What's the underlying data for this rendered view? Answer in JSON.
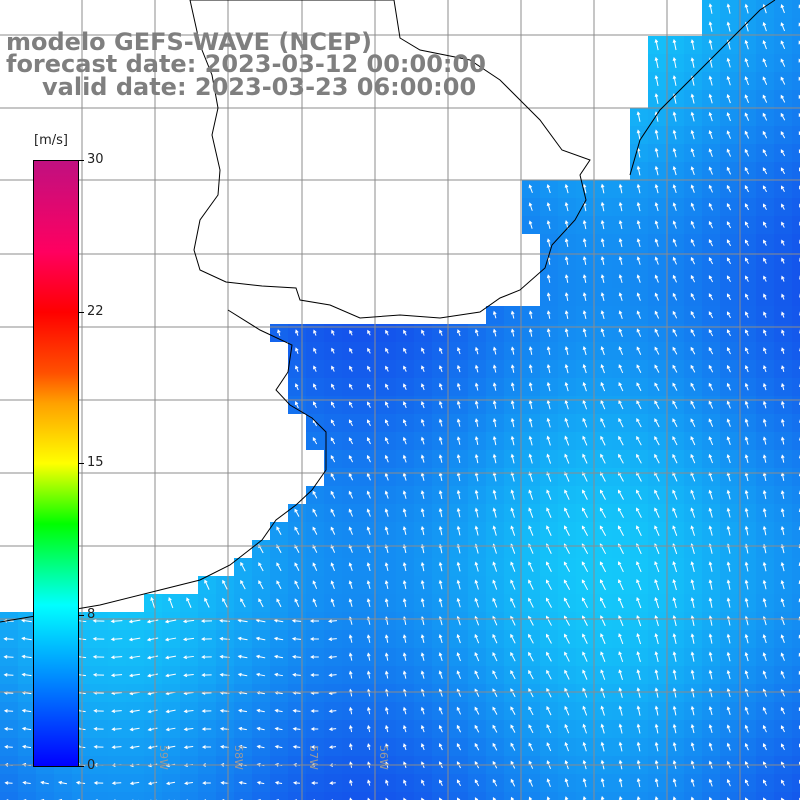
{
  "header": {
    "model": "modelo GEFS-WAVE (NCEP)",
    "forecast": "forecast date: 2023-03-12 00:00:00",
    "valid": "valid date: 2023-03-23 06:00:00"
  },
  "colorbar": {
    "unit": "[m/s]",
    "ticks": [
      "0",
      "8",
      "15",
      "22",
      "30"
    ],
    "colors": [
      "#0000ff",
      "#00bfff",
      "#00ffff",
      "#00ff00",
      "#ffff00",
      "#ff5000",
      "#ff0000",
      "#c01080"
    ]
  },
  "map": {
    "ocean_color": "#1e8cf0",
    "land_color": "#ffffff",
    "arrow_color": "#ffffff",
    "grid_color": "#8c8c8c",
    "lon_labels": [
      "59W",
      "58W",
      "57W",
      "56W"
    ]
  }
}
